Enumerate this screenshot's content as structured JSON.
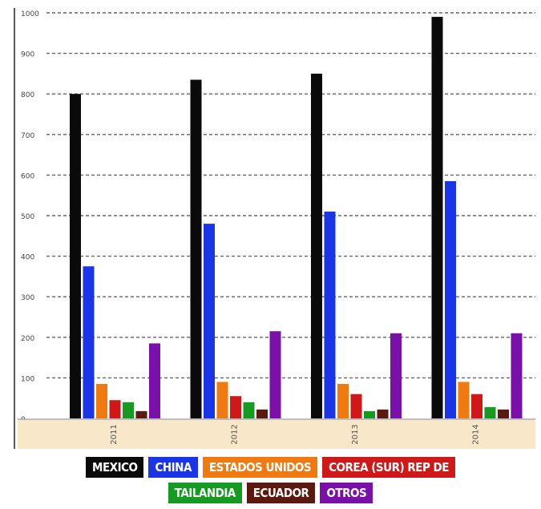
{
  "chart_data": {
    "type": "bar",
    "title": "",
    "xlabel": "",
    "ylabel": "",
    "categories": [
      "2011",
      "2012",
      "2013",
      "2014"
    ],
    "ylim": [
      0,
      1000
    ],
    "yticks": [
      "0",
      "100",
      "200",
      "300",
      "400",
      "500",
      "600",
      "700",
      "800",
      "900",
      "1000"
    ],
    "grid": true,
    "legend_position": "bottom",
    "series": [
      {
        "name": "MEXICO",
        "color": "#0a0a0a",
        "values": [
          800,
          835,
          850,
          990
        ]
      },
      {
        "name": "CHINA",
        "color": "#1a35e8",
        "values": [
          375,
          480,
          510,
          585
        ]
      },
      {
        "name": "ESTADOS UNIDOS",
        "color": "#f07a10",
        "values": [
          85,
          90,
          85,
          90
        ]
      },
      {
        "name": "COREA (SUR) REP DE",
        "color": "#d01818",
        "values": [
          45,
          55,
          60,
          60
        ]
      },
      {
        "name": "TAILANDIA",
        "color": "#169a22",
        "values": [
          40,
          40,
          18,
          28
        ]
      },
      {
        "name": "ECUADOR",
        "color": "#5a1a10",
        "values": [
          18,
          22,
          22,
          22
        ]
      },
      {
        "name": "OTROS",
        "color": "#7a10a8",
        "values": [
          185,
          215,
          210,
          210
        ]
      }
    ]
  }
}
